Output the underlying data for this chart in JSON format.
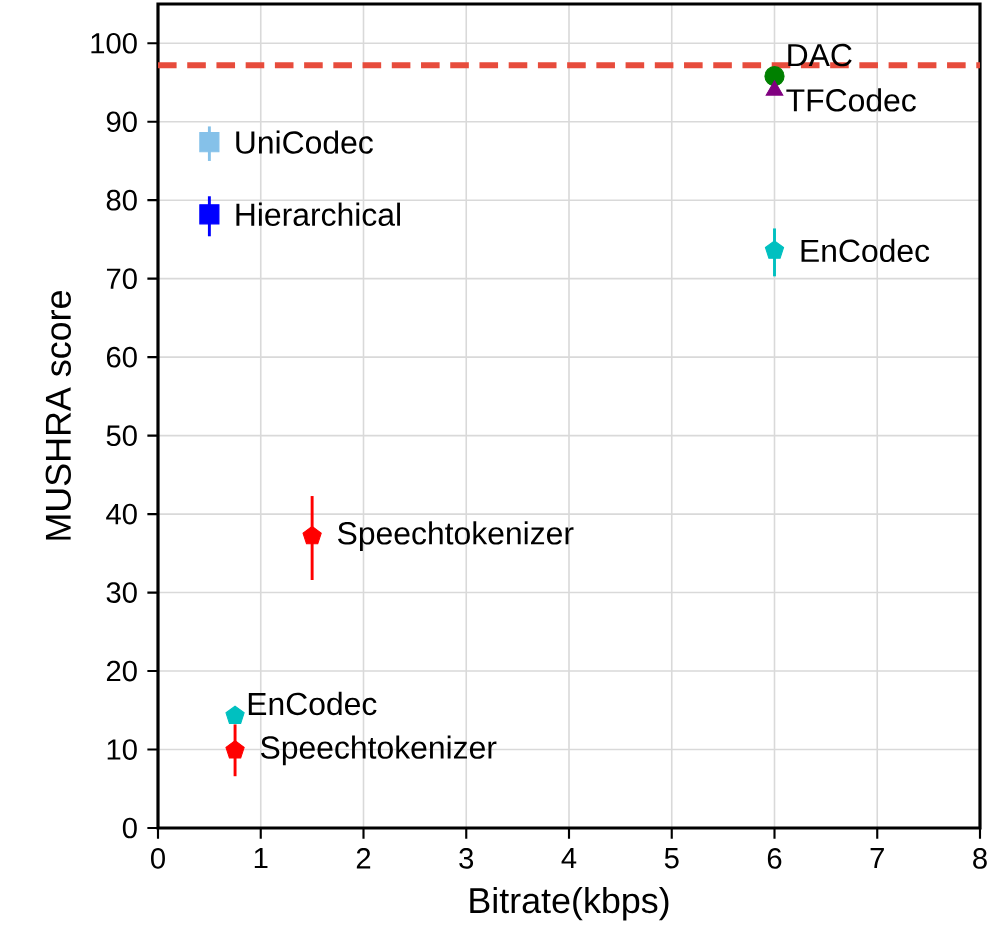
{
  "chart_data": {
    "type": "scatter",
    "xlabel": "Bitrate(kbps)",
    "ylabel": "MUSHRA score",
    "xlim": [
      0,
      8
    ],
    "ylim": [
      0,
      105
    ],
    "xticks": [
      0,
      1,
      2,
      3,
      4,
      5,
      6,
      7,
      8
    ],
    "yticks": [
      0,
      10,
      20,
      30,
      40,
      50,
      60,
      70,
      80,
      90,
      100
    ],
    "grid": true,
    "series": [
      {
        "name": "UniCodec",
        "color": "#85c1e9",
        "marker": "square",
        "x": [
          0.5
        ],
        "values": [
          87.4
        ],
        "errors": [
          [
            85,
            89.4
          ]
        ]
      },
      {
        "name": "Hierarchical",
        "color": "#0000ff",
        "marker": "square",
        "x": [
          0.5
        ],
        "values": [
          78.2
        ],
        "errors": [
          [
            75.4,
            80.5
          ]
        ]
      },
      {
        "name": "Speechtokenizer",
        "color": "#ff0000",
        "x": [
          1.5
        ],
        "values": [
          37.2
        ],
        "errors": [
          [
            31.6,
            42.3
          ]
        ]
      },
      {
        "name": "EnCodec",
        "color": "#00c0c0",
        "x": [
          0.75
        ],
        "values": [
          14.3
        ],
        "errors": [
          null
        ]
      },
      {
        "name": "Speechtokenizer",
        "color": "#ff0000",
        "x": [
          0.75
        ],
        "values": [
          9.9
        ],
        "errors": [
          [
            6.6,
            13.2
          ]
        ]
      },
      {
        "name": "DAC",
        "color": "#008000",
        "marker": "circle",
        "x": [
          6
        ],
        "values": [
          95.8
        ],
        "errors": [
          null
        ]
      },
      {
        "name": "TFCodec",
        "color": "#800080",
        "marker": "triangle",
        "x": [
          6
        ],
        "values": [
          94.0
        ],
        "errors": [
          null
        ]
      },
      {
        "name": "EnCodec",
        "color": "#00c0c0",
        "x": [
          6
        ],
        "values": [
          73.6
        ],
        "errors": [
          [
            70.3,
            76.4
          ]
        ]
      }
    ],
    "ref_lines": [
      {
        "axis": "y",
        "value": 97.2,
        "color": "#e74c3c",
        "line_style": "dashed"
      }
    ]
  }
}
